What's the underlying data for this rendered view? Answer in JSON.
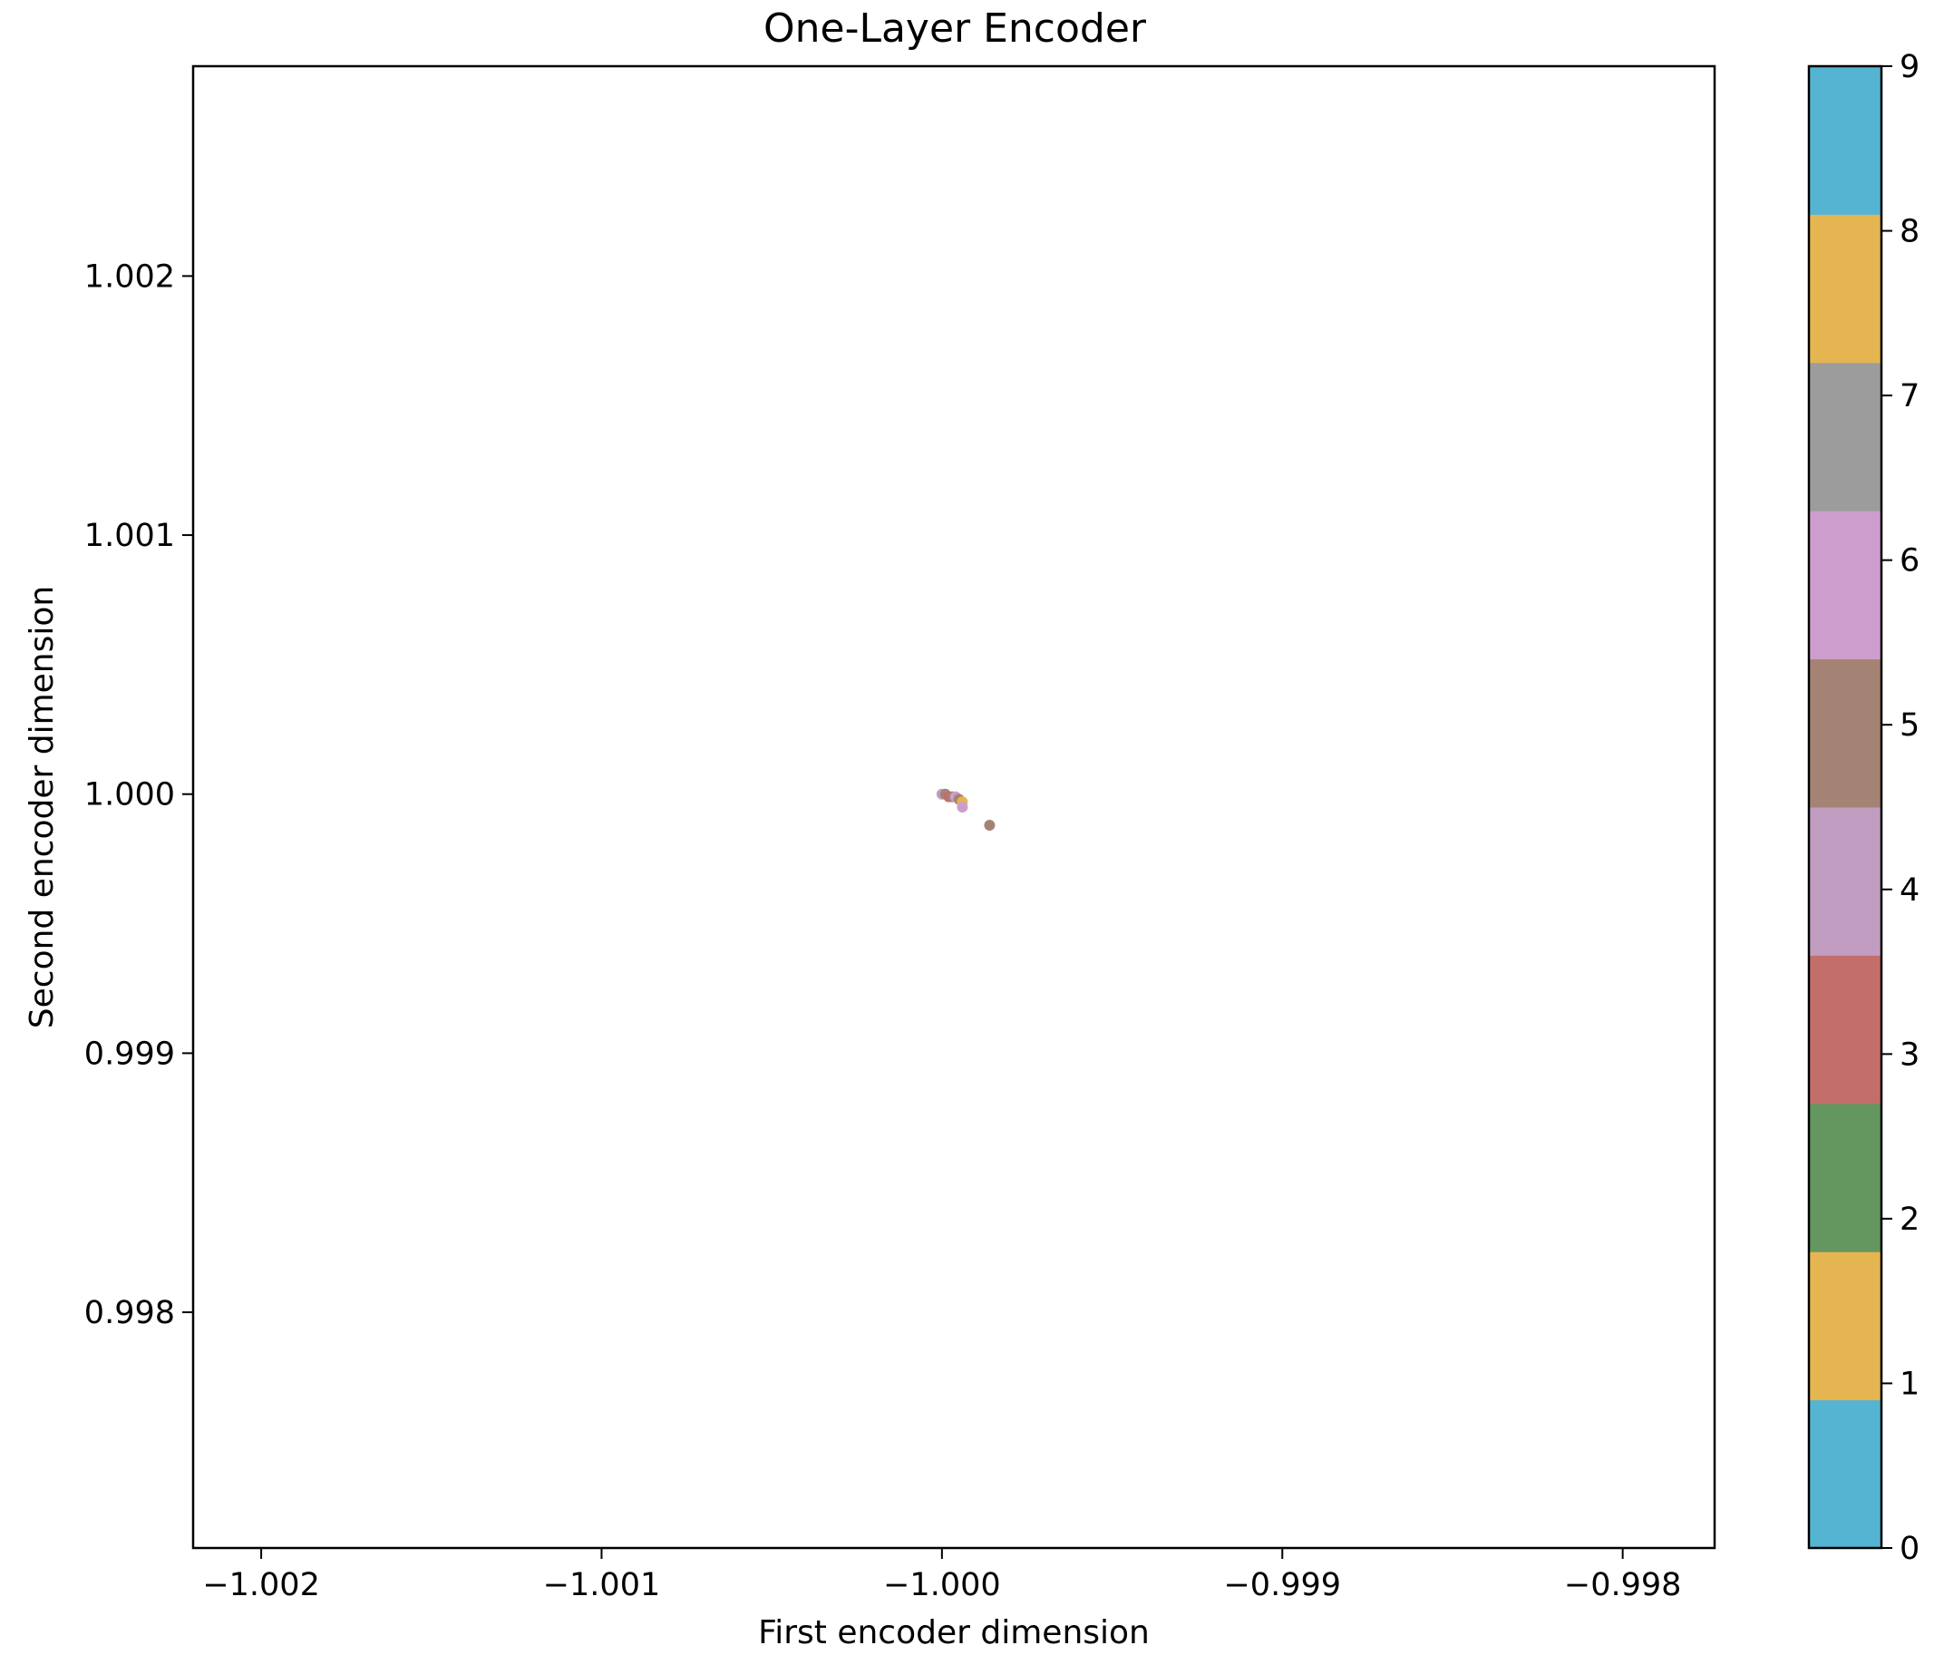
{
  "chart_data": {
    "type": "scatter",
    "title": "One-Layer Encoder",
    "xlabel": "First encoder dimension",
    "ylabel": "Second encoder dimension",
    "xlim": [
      -1.0022,
      -0.99773
    ],
    "ylim": [
      0.99709,
      1.00281
    ],
    "x_ticks": [
      -1.002,
      -1.001,
      -1.0,
      -0.999,
      -0.998
    ],
    "x_tick_labels": [
      "−1.002",
      "−1.001",
      "−1.000",
      "−0.999",
      "−0.998"
    ],
    "y_ticks": [
      0.998,
      0.999,
      1.0,
      1.001,
      1.002
    ],
    "y_tick_labels": [
      "0.998",
      "0.999",
      "1.000",
      "1.001",
      "1.002"
    ],
    "grid": false,
    "colorbar": {
      "min": 0,
      "max": 9,
      "ticks": [
        0,
        1,
        2,
        3,
        4,
        5,
        6,
        7,
        8,
        9
      ],
      "colors": [
        "#56b4d3",
        "#e5b552",
        "#64965f",
        "#c26e6b",
        "#c19dc2",
        "#a58374",
        "#cd9ecd",
        "#9c9c9c",
        "#e5b552",
        "#56b4d3"
      ]
    },
    "points": [
      {
        "x": -1.0,
        "y": 1.0,
        "label": 4
      },
      {
        "x": -0.99999,
        "y": 1.0,
        "label": 5
      },
      {
        "x": -0.99998,
        "y": 0.99999,
        "label": 3
      },
      {
        "x": -0.99997,
        "y": 0.99999,
        "label": 5
      },
      {
        "x": -0.99996,
        "y": 0.99999,
        "label": 6
      },
      {
        "x": -0.99995,
        "y": 0.99998,
        "label": 5
      },
      {
        "x": -0.99994,
        "y": 0.99997,
        "label": 8
      },
      {
        "x": -0.99994,
        "y": 0.99995,
        "label": 6
      },
      {
        "x": -0.99986,
        "y": 0.99988,
        "label": 5
      }
    ]
  }
}
